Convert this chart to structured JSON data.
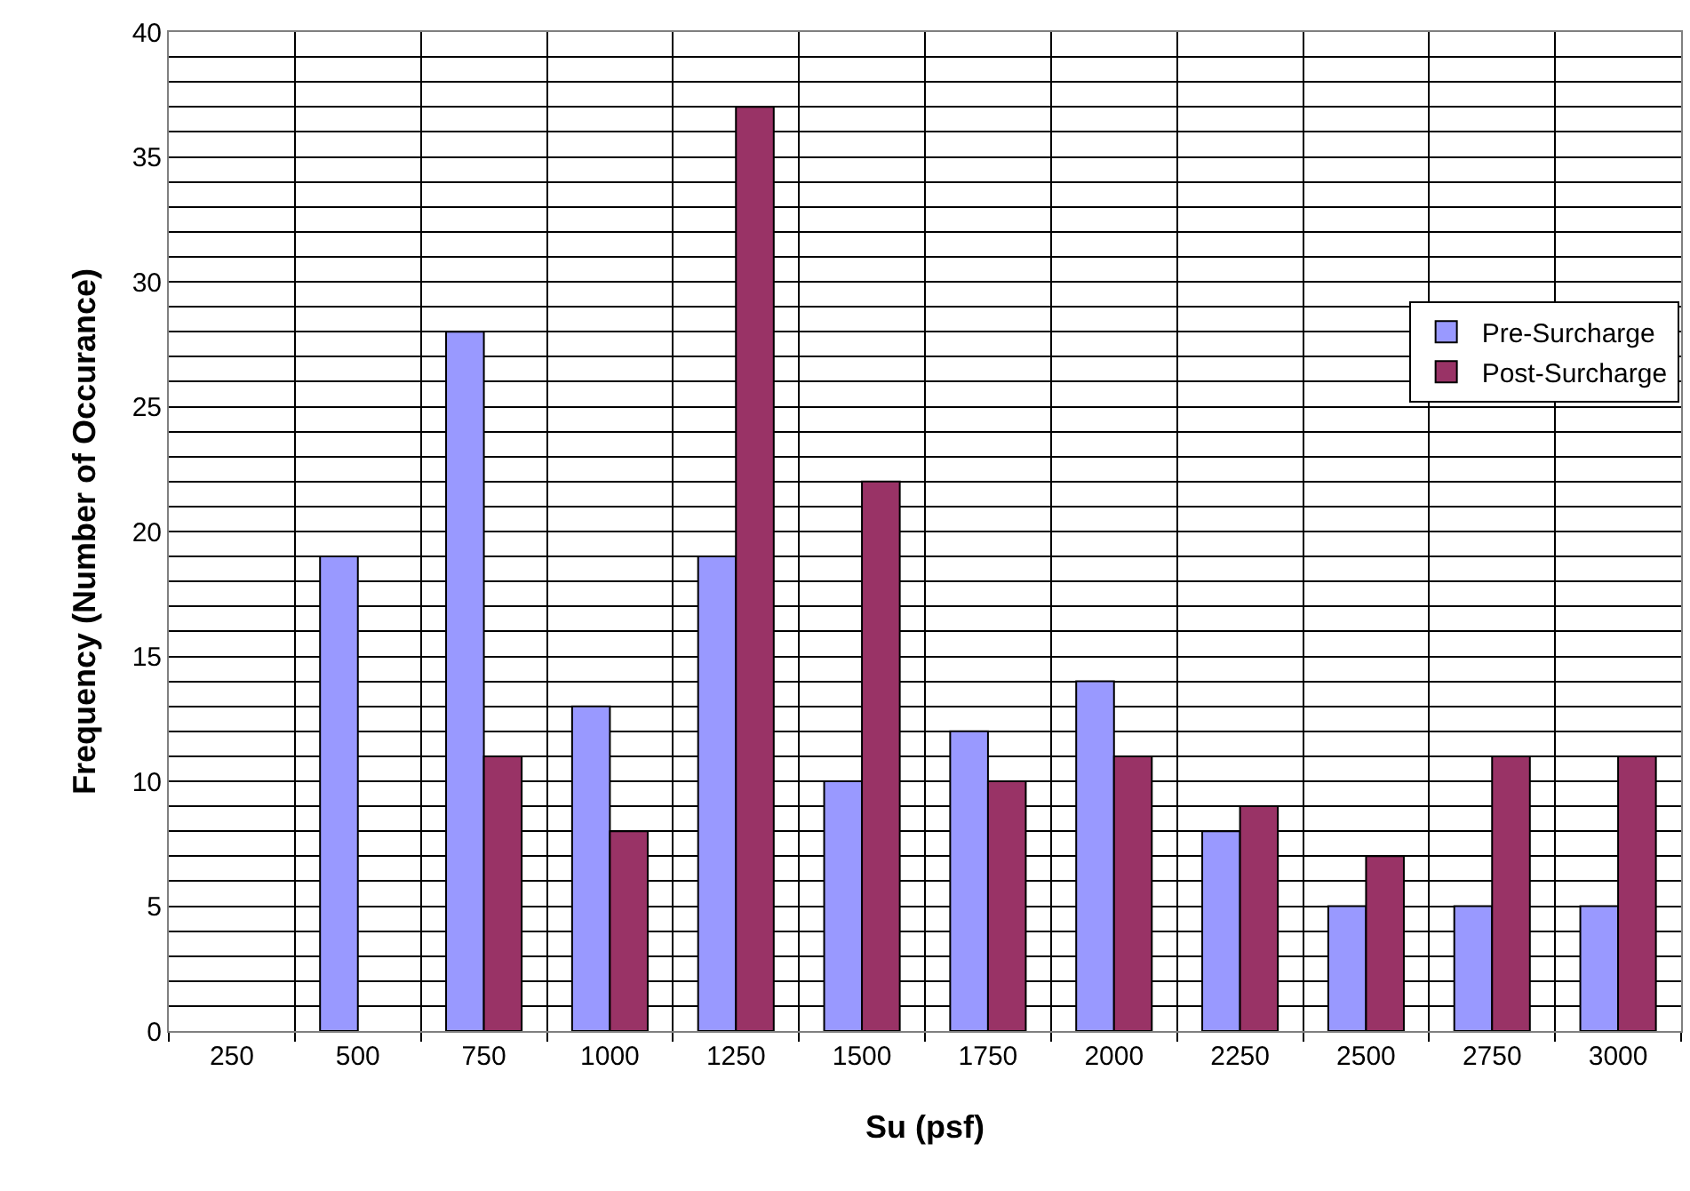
{
  "chart_data": {
    "type": "bar",
    "xlabel": "Su (psf)",
    "ylabel": "Frequency (Number of Occurance)",
    "categories": [
      "250",
      "500",
      "750",
      "1000",
      "1250",
      "1500",
      "1750",
      "2000",
      "2250",
      "2500",
      "2750",
      "3000"
    ],
    "series": [
      {
        "name": "Pre-Surcharge",
        "color": "#9999ff",
        "values": [
          null,
          19,
          28,
          13,
          19,
          10,
          12,
          14,
          8,
          5,
          5,
          5
        ]
      },
      {
        "name": "Post-Surcharge",
        "color": "#993366",
        "values": [
          null,
          null,
          11,
          8,
          37,
          22,
          10,
          11,
          9,
          7,
          11,
          11
        ]
      }
    ],
    "ylim": [
      0,
      40
    ],
    "yticks": [
      0,
      {
        "value": 1,
        "label": null
      },
      {
        "value": 2,
        "label": null
      },
      {
        "value": 3,
        "label": null
      },
      {
        "value": 4,
        "label": null
      },
      5,
      {
        "value": 6,
        "label": null
      },
      {
        "value": 7,
        "label": null
      },
      {
        "value": 8,
        "label": null
      },
      {
        "value": 9,
        "label": null
      },
      10,
      {
        "value": 11,
        "label": null
      },
      {
        "value": 12,
        "label": null
      },
      {
        "value": 13,
        "label": null
      },
      {
        "value": 14,
        "label": null
      },
      15,
      {
        "value": 16,
        "label": null
      },
      {
        "value": 17,
        "label": null
      },
      {
        "value": 18,
        "label": null
      },
      {
        "value": 19,
        "label": null
      },
      20,
      {
        "value": 21,
        "label": null
      },
      {
        "value": 22,
        "label": null
      },
      {
        "value": 23,
        "label": null
      },
      {
        "value": 24,
        "label": null
      },
      25,
      {
        "value": 26,
        "label": null
      },
      {
        "value": 27,
        "label": null
      },
      {
        "value": 28,
        "label": null
      },
      {
        "value": 29,
        "label": null
      },
      30,
      {
        "value": 31,
        "label": null
      },
      {
        "value": 32,
        "label": null
      },
      {
        "value": 33,
        "label": null
      },
      {
        "value": 34,
        "label": null
      },
      35,
      {
        "value": 36,
        "label": null
      },
      {
        "value": 37,
        "label": null
      },
      {
        "value": 38,
        "label": null
      },
      {
        "value": 39,
        "label": null
      },
      40
    ],
    "grid": true,
    "legend": "right"
  }
}
